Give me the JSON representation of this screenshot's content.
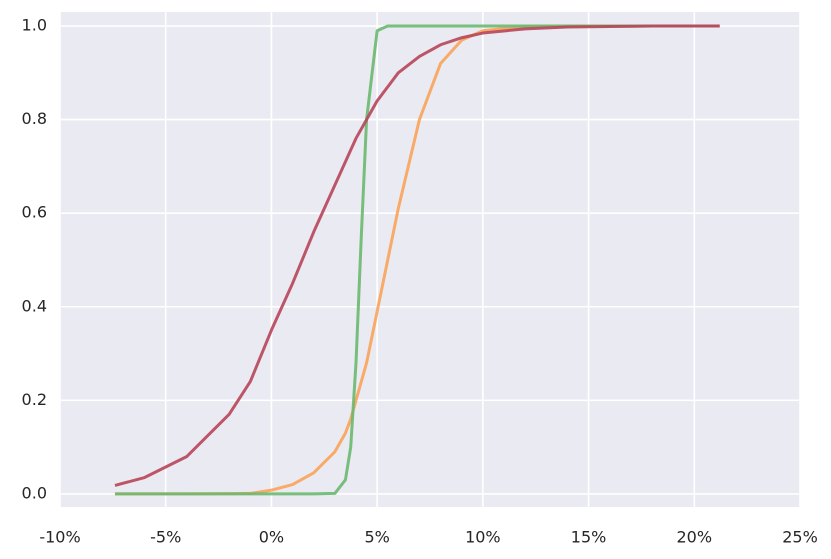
{
  "chart_data": {
    "type": "line",
    "x": [
      -7.4,
      -6,
      -4,
      -2,
      -1,
      0,
      1,
      2,
      3,
      3.5,
      3.75,
      4,
      4.25,
      4.5,
      5,
      5.5,
      6,
      7,
      8,
      9,
      10,
      12,
      14,
      16,
      18,
      21.2
    ],
    "series": [
      {
        "color": "#f9a35a",
        "values": [
          0,
          0,
          0,
          0.0005,
          0.001,
          0.008,
          0.02,
          0.045,
          0.09,
          0.13,
          0.16,
          0.2,
          0.24,
          0.28,
          0.39,
          0.5,
          0.61,
          0.8,
          0.92,
          0.97,
          0.99,
          0.999,
          1.0,
          1.0,
          1.0,
          1.0
        ]
      },
      {
        "color": "#6ab86f",
        "values": [
          0,
          0,
          0,
          0,
          0,
          0,
          0,
          0,
          0.001,
          0.03,
          0.1,
          0.28,
          0.55,
          0.8,
          0.99,
          1.0,
          1.0,
          1.0,
          1.0,
          1.0,
          1.0,
          1.0,
          1.0,
          1.0,
          1.0,
          1.0
        ]
      },
      {
        "color": "#b8455a",
        "values": [
          0.018,
          0.035,
          0.08,
          0.17,
          0.24,
          0.35,
          0.45,
          0.56,
          0.66,
          0.71,
          0.735,
          0.76,
          0.78,
          0.8,
          0.84,
          0.87,
          0.9,
          0.935,
          0.96,
          0.975,
          0.985,
          0.994,
          0.998,
          0.999,
          1.0,
          1.0
        ]
      }
    ],
    "xlim": [
      -10,
      25
    ],
    "xticks": [
      {
        "value": -10,
        "label": "-10%"
      },
      {
        "value": -5,
        "label": "-5%"
      },
      {
        "value": 0,
        "label": "0%"
      },
      {
        "value": 5,
        "label": "5%"
      },
      {
        "value": 10,
        "label": "10%"
      },
      {
        "value": 15,
        "label": "15%"
      },
      {
        "value": 20,
        "label": "20%"
      },
      {
        "value": 25,
        "label": "25%"
      }
    ],
    "ylim": [
      -0.028,
      1.03
    ],
    "yticks": [
      {
        "value": 0,
        "label": "0.0"
      },
      {
        "value": 0.2,
        "label": "0.2"
      },
      {
        "value": 0.4,
        "label": "0.4"
      },
      {
        "value": 0.6,
        "label": "0.6"
      },
      {
        "value": 0.8,
        "label": "0.8"
      },
      {
        "value": 1,
        "label": "1.0"
      }
    ],
    "grid": true
  }
}
